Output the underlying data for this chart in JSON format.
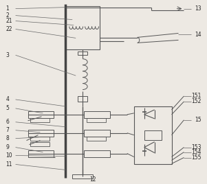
{
  "bg_color": "#ede9e3",
  "lc": "#666666",
  "lc_dark": "#444444",
  "fig_width": 3.01,
  "fig_height": 2.68,
  "dpi": 100
}
